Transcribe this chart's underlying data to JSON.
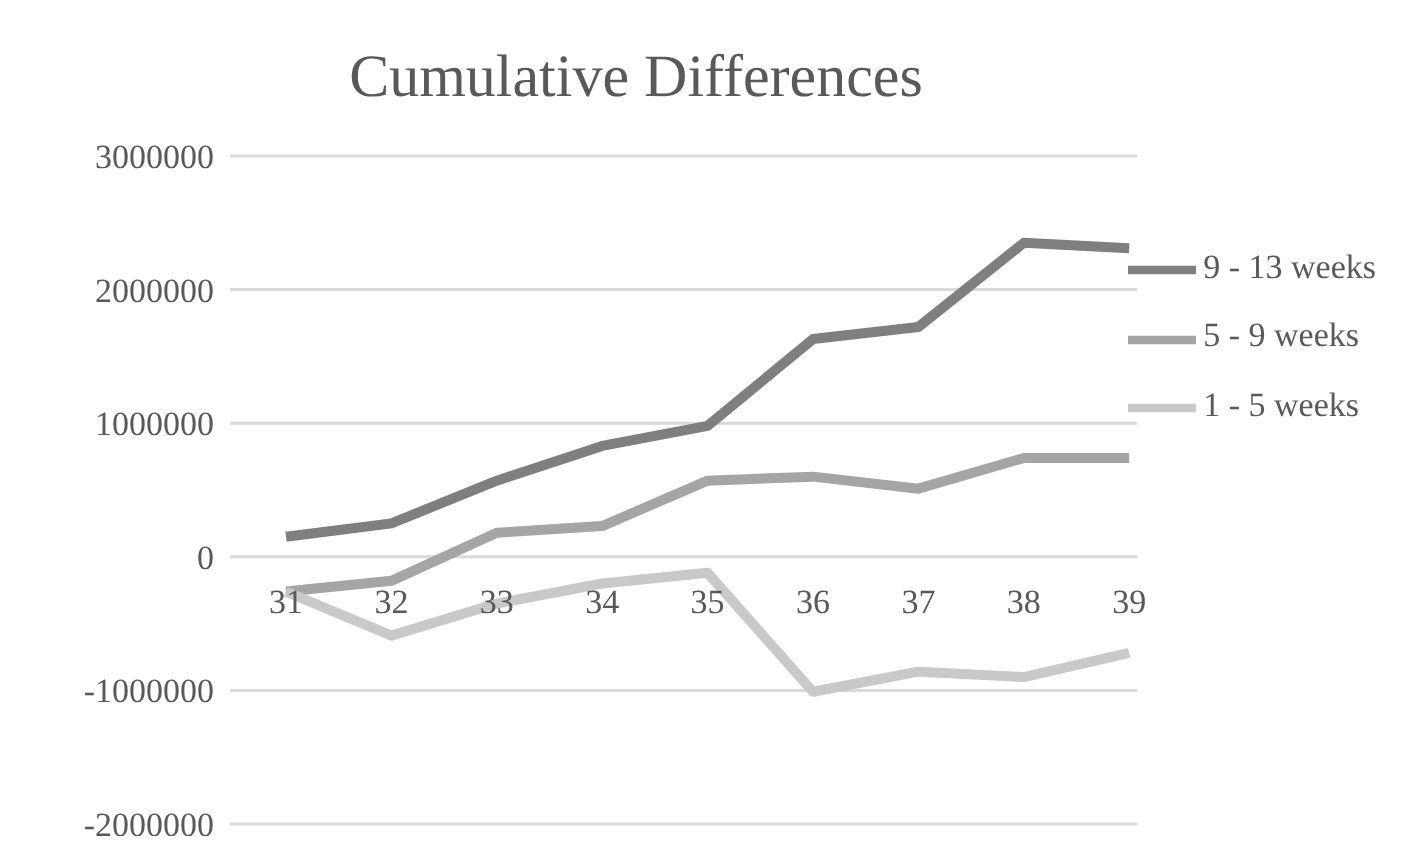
{
  "chart_data": {
    "type": "line",
    "title": "Cumulative Differences",
    "categories": [
      "31",
      "32",
      "33",
      "34",
      "35",
      "36",
      "37",
      "38",
      "39"
    ],
    "series": [
      {
        "name": "9 - 13 weeks",
        "color": "#7f7f7f",
        "values": [
          150000,
          250000,
          570000,
          830000,
          980000,
          1630000,
          1720000,
          2350000,
          2310000
        ]
      },
      {
        "name": "5 - 9 weeks",
        "color": "#a5a5a5",
        "values": [
          -260000,
          -180000,
          180000,
          230000,
          570000,
          600000,
          510000,
          740000,
          740000
        ]
      },
      {
        "name": "1 - 5 weeks",
        "color": "#c9c9c9",
        "values": [
          -260000,
          -590000,
          -350000,
          -200000,
          -120000,
          -1010000,
          -860000,
          -900000,
          -720000
        ]
      }
    ],
    "ylim": [
      -2000000,
      3000000
    ],
    "yticks": [
      -2000000,
      -1000000,
      0,
      1000000,
      2000000,
      3000000
    ],
    "grid": "y",
    "legend": "right",
    "marker": "none",
    "line_style": "solid"
  }
}
